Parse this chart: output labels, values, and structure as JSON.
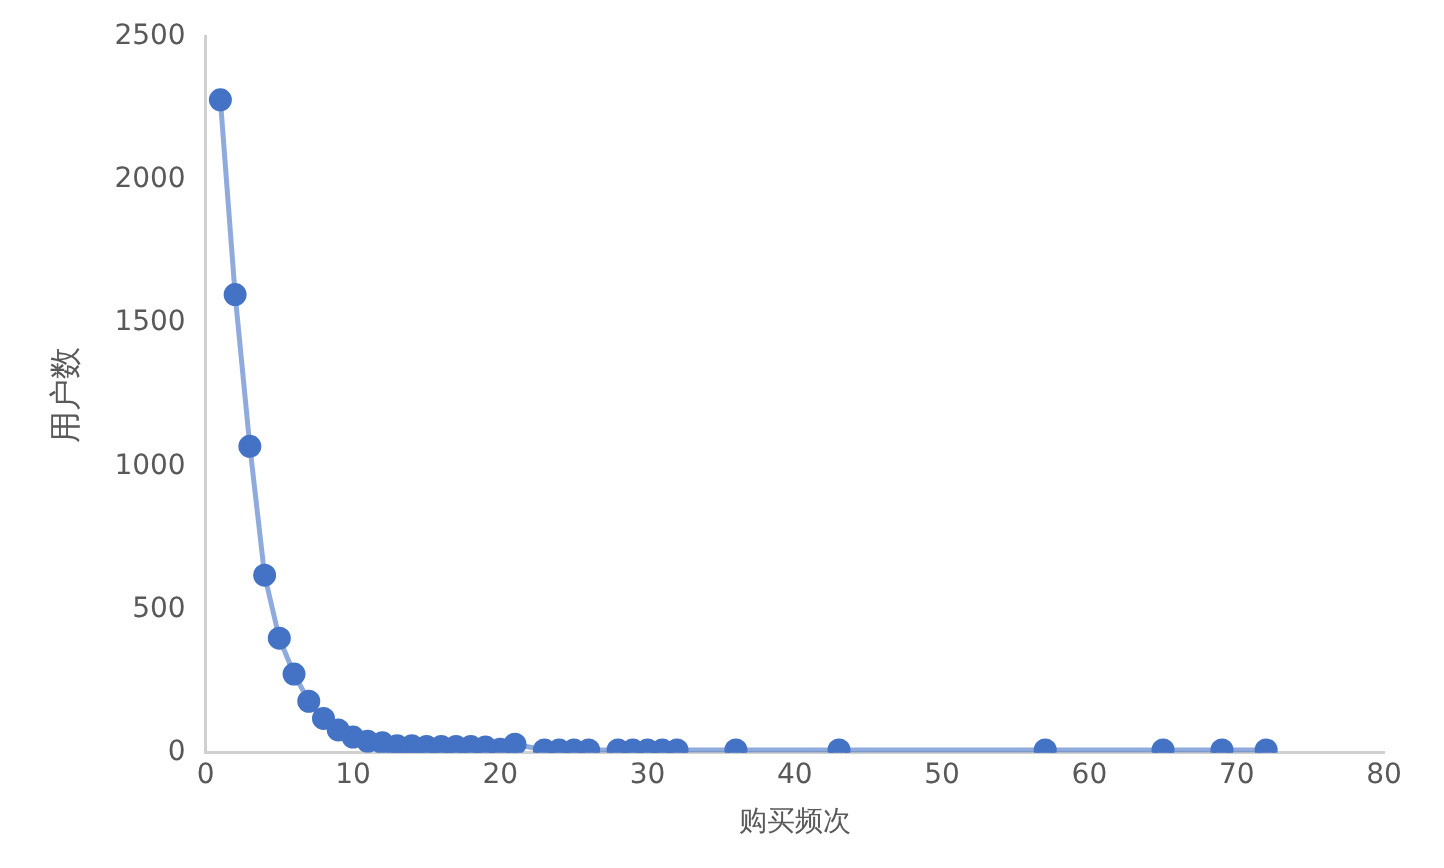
{
  "chart_data": {
    "type": "line",
    "xlabel": "购买频次",
    "ylabel": "用户数",
    "x": [
      1,
      2,
      3,
      4,
      5,
      6,
      7,
      8,
      9,
      10,
      11,
      12,
      13,
      14,
      15,
      16,
      17,
      18,
      19,
      20,
      21,
      23,
      24,
      25,
      26,
      28,
      29,
      30,
      31,
      32,
      36,
      43,
      57,
      65,
      69,
      72
    ],
    "series": [
      {
        "color": "#4472c4",
        "values": [
          2280,
          1600,
          1070,
          620,
          400,
          275,
          180,
          120,
          80,
          55,
          40,
          35,
          25,
          25,
          22,
          22,
          22,
          22,
          20,
          12,
          30,
          10,
          10,
          10,
          10,
          10,
          10,
          10,
          10,
          10,
          10,
          10,
          10,
          10,
          10,
          10
        ]
      }
    ],
    "xlim": [
      0,
      80
    ],
    "xticks": [
      0,
      10,
      20,
      30,
      40,
      50,
      60,
      70,
      80
    ],
    "ylim": [
      0,
      2500
    ],
    "yticks": [
      0,
      500,
      1000,
      1500,
      2000,
      2500
    ],
    "grid": false,
    "legend": false,
    "marker": "circle",
    "line_style": "solid"
  }
}
